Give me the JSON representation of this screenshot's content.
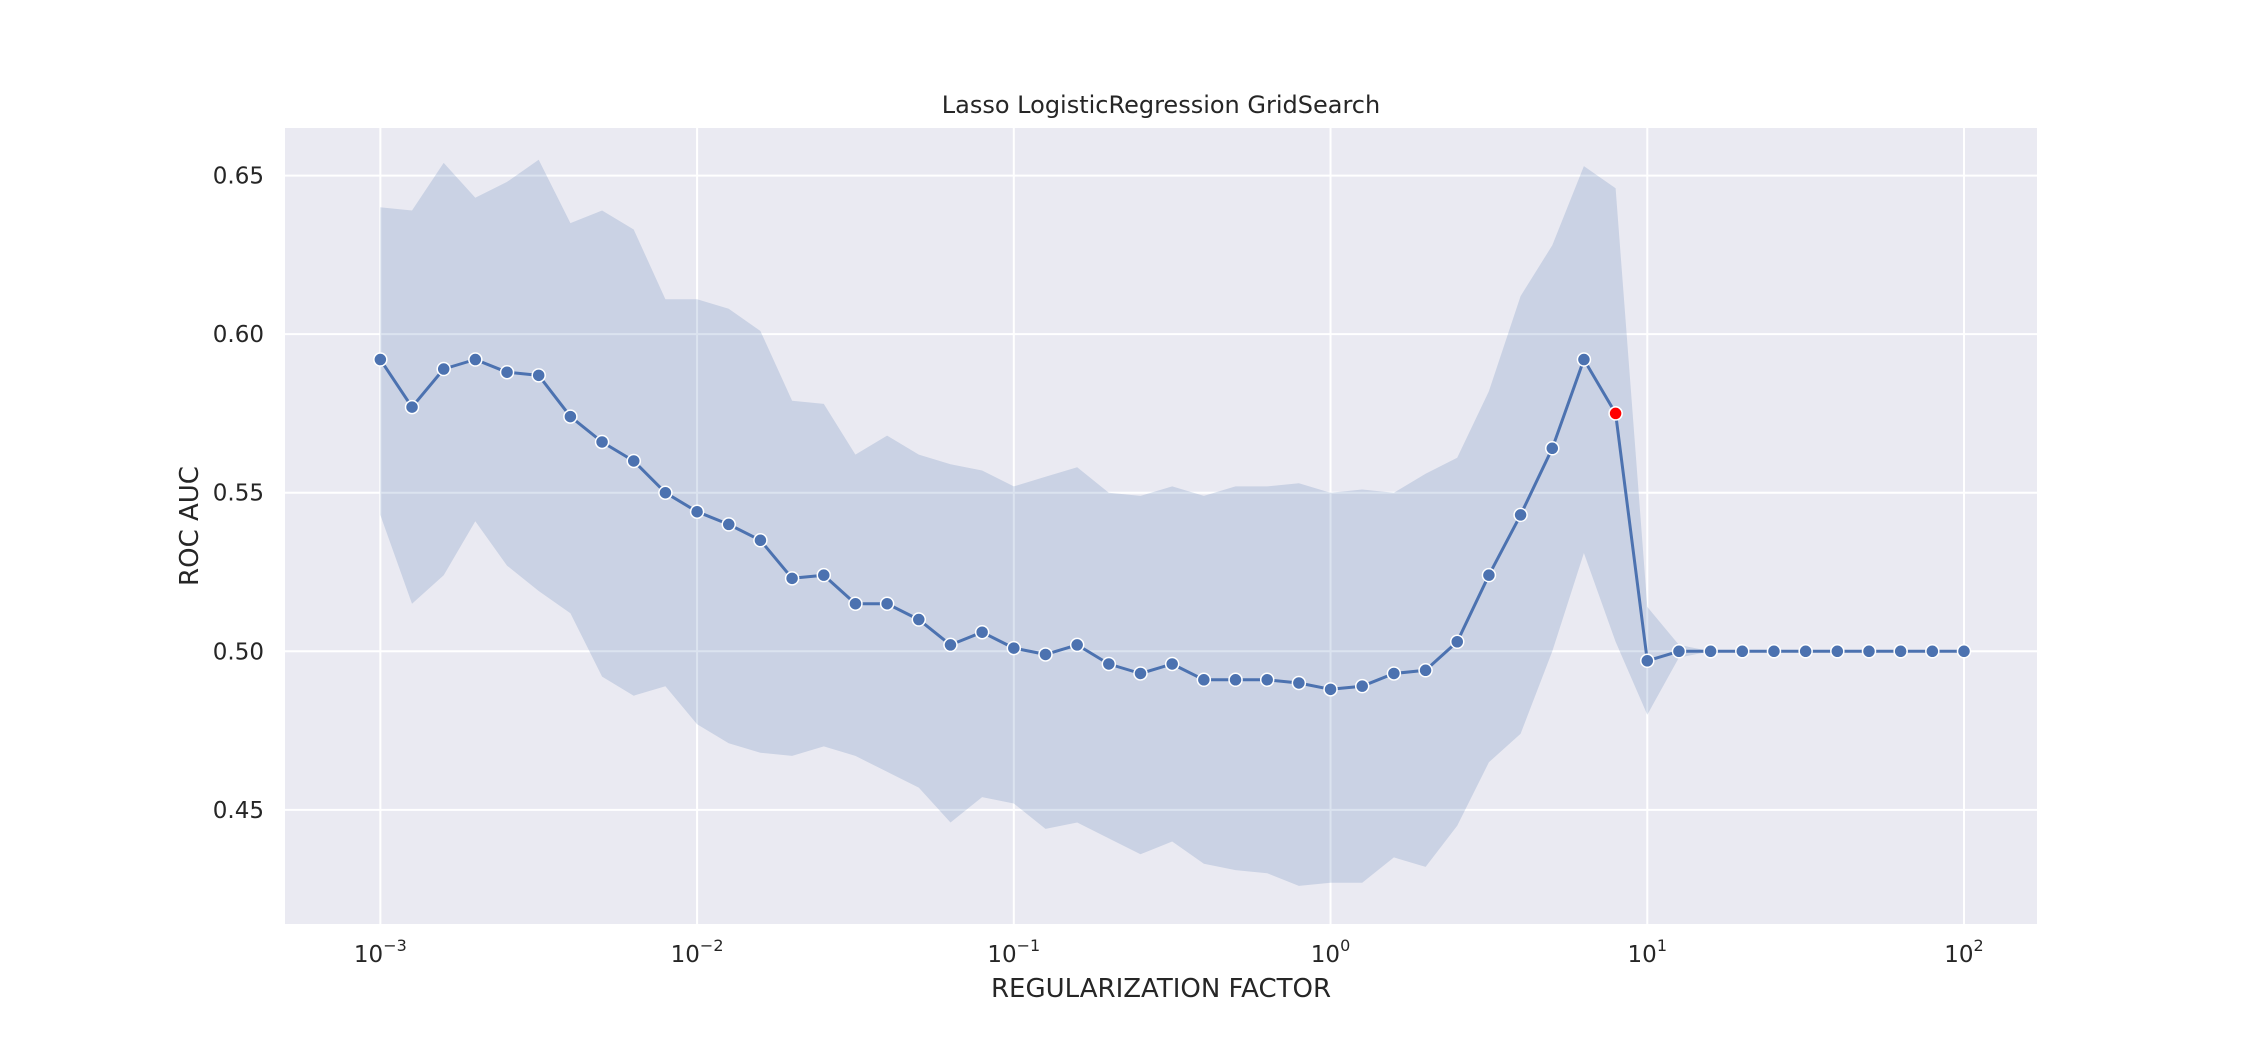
{
  "chart_data": {
    "type": "line",
    "title": "Lasso LogisticRegression GridSearch",
    "xlabel": "REGULARIZATION FACTOR",
    "ylabel": "ROC AUC",
    "x_scale": "log",
    "xlim": [
      0.0005,
      170
    ],
    "ylim": [
      0.414,
      0.665
    ],
    "grid": true,
    "colors": {
      "background": "#eaeaf2",
      "grid": "#ffffff",
      "line": "#4c72b0",
      "band": "#4c72b0",
      "marker_edge": "#ffffff",
      "highlight": "#ff0000"
    },
    "x_ticks": [
      {
        "value": 0.001,
        "base": "10",
        "exp": "−3"
      },
      {
        "value": 0.01,
        "base": "10",
        "exp": "−2"
      },
      {
        "value": 0.1,
        "base": "10",
        "exp": "−1"
      },
      {
        "value": 1,
        "base": "10",
        "exp": "0"
      },
      {
        "value": 10,
        "base": "10",
        "exp": "1"
      },
      {
        "value": 100,
        "base": "10",
        "exp": "2"
      }
    ],
    "y_ticks": [
      {
        "value": 0.45,
        "label": "0.45"
      },
      {
        "value": 0.5,
        "label": "0.50"
      },
      {
        "value": 0.55,
        "label": "0.55"
      },
      {
        "value": 0.6,
        "label": "0.60"
      },
      {
        "value": 0.65,
        "label": "0.65"
      }
    ],
    "series": [
      {
        "x": [
          0.001,
          0.001259,
          0.001585,
          0.001995,
          0.002512,
          0.003162,
          0.003981,
          0.005012,
          0.00631,
          0.007943,
          0.01,
          0.012589,
          0.015849,
          0.019953,
          0.025119,
          0.031623,
          0.039811,
          0.050119,
          0.063096,
          0.079433,
          0.1,
          0.125893,
          0.158489,
          0.199526,
          0.251189,
          0.316228,
          0.398107,
          0.501187,
          0.630957,
          0.794328,
          1.0,
          1.258925,
          1.584893,
          1.995262,
          2.511886,
          3.162278,
          3.981072,
          5.011872,
          6.309573,
          7.943282,
          10.0,
          12.589254,
          15.848932,
          19.952623,
          25.118864,
          31.622777,
          39.810717,
          50.118723,
          63.095734,
          79.432823,
          100.0
        ],
        "y": [
          0.592,
          0.577,
          0.589,
          0.592,
          0.588,
          0.587,
          0.574,
          0.566,
          0.56,
          0.55,
          0.544,
          0.54,
          0.535,
          0.523,
          0.524,
          0.515,
          0.515,
          0.51,
          0.502,
          0.506,
          0.501,
          0.499,
          0.502,
          0.496,
          0.493,
          0.496,
          0.491,
          0.491,
          0.491,
          0.49,
          0.488,
          0.489,
          0.493,
          0.494,
          0.503,
          0.524,
          0.543,
          0.564,
          0.592,
          0.575,
          0.497,
          0.5,
          0.5,
          0.5,
          0.5,
          0.5,
          0.5,
          0.5,
          0.5,
          0.5,
          0.5
        ],
        "y_upper": [
          0.64,
          0.639,
          0.654,
          0.643,
          0.648,
          0.655,
          0.635,
          0.639,
          0.633,
          0.611,
          0.611,
          0.608,
          0.601,
          0.579,
          0.578,
          0.562,
          0.568,
          0.562,
          0.559,
          0.557,
          0.552,
          0.555,
          0.558,
          0.55,
          0.549,
          0.552,
          0.549,
          0.552,
          0.552,
          0.553,
          0.55,
          0.551,
          0.55,
          0.556,
          0.561,
          0.582,
          0.612,
          0.628,
          0.653,
          0.646,
          0.514,
          0.502,
          0.5,
          0.5,
          0.5,
          0.5,
          0.5,
          0.5,
          0.5,
          0.5,
          0.5
        ],
        "y_lower": [
          0.543,
          0.515,
          0.524,
          0.541,
          0.527,
          0.519,
          0.512,
          0.492,
          0.486,
          0.489,
          0.477,
          0.471,
          0.468,
          0.467,
          0.47,
          0.467,
          0.462,
          0.457,
          0.446,
          0.454,
          0.452,
          0.444,
          0.446,
          0.441,
          0.436,
          0.44,
          0.433,
          0.431,
          0.43,
          0.426,
          0.427,
          0.427,
          0.435,
          0.432,
          0.445,
          0.465,
          0.474,
          0.5,
          0.531,
          0.503,
          0.48,
          0.498,
          0.5,
          0.5,
          0.5,
          0.5,
          0.5,
          0.5,
          0.5,
          0.5,
          0.5
        ],
        "highlight": {
          "x": 7.943282,
          "y": 0.575
        }
      }
    ]
  }
}
